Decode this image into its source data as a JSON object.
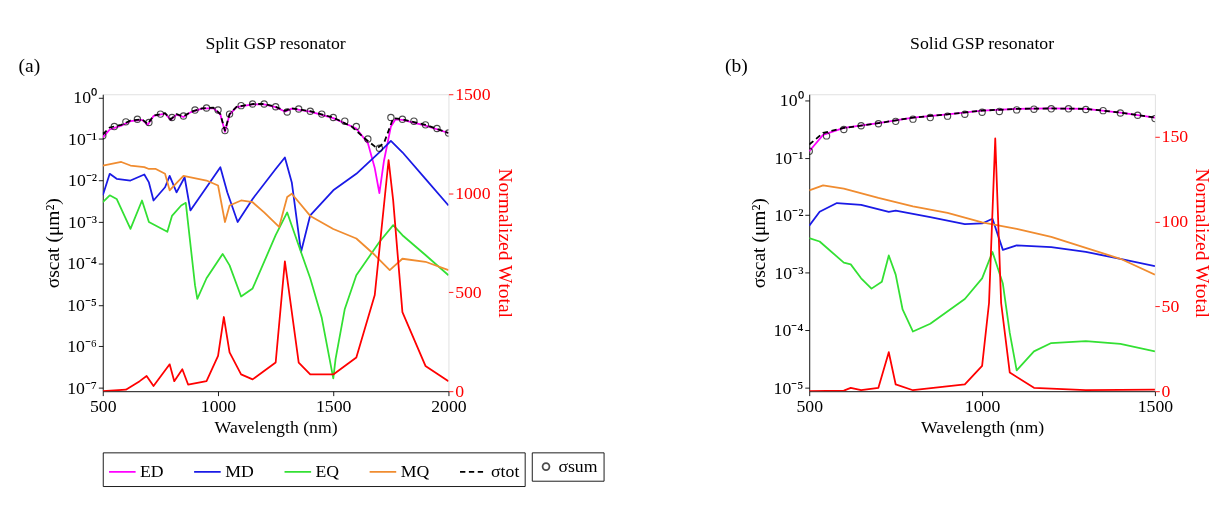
{
  "chart_data": [
    {
      "type": "line",
      "title": "Split GSP resonator",
      "annotations": [
        "(a)"
      ],
      "xlabel": "Wavelength (nm)",
      "ylabel": "σscat (μm²)",
      "y2label": "Normalized Wtotal",
      "log": "y",
      "legend": "bottom",
      "xlim": [
        500,
        2000
      ],
      "xticks": [
        500,
        1000,
        1500,
        2000
      ],
      "ylim": [
        8.3e-08,
        1.2
      ],
      "yticks": [
        {
          "value": 1e-07,
          "label": "10⁻⁷"
        },
        {
          "value": 1e-06,
          "label": "10⁻⁶"
        },
        {
          "value": 1e-05,
          "label": "10⁻⁵"
        },
        {
          "value": 0.0001,
          "label": "10⁻⁴"
        },
        {
          "value": 0.001,
          "label": "10⁻³"
        },
        {
          "value": 0.01,
          "label": "10⁻²"
        },
        {
          "value": 0.1,
          "label": "10⁻¹"
        },
        {
          "value": 1,
          "label": "10⁰"
        }
      ],
      "y2lim": [
        0,
        1500
      ],
      "y2ticks": [
        0,
        500,
        1000,
        1500
      ],
      "series": [
        {
          "name": "ED",
          "color": "#ff00ff",
          "x": [
            500,
            530,
            580,
            620,
            670,
            695,
            720,
            770,
            795,
            820,
            850,
            880,
            930,
            980,
            1010,
            1030,
            1050,
            1080,
            1150,
            1200,
            1250,
            1290,
            1320,
            1400,
            1500,
            1600,
            1650,
            1680,
            1700,
            1720,
            1750,
            1770,
            1800,
            1900,
            2000
          ],
          "values": [
            0.11,
            0.17,
            0.21,
            0.27,
            0.29,
            0.22,
            0.36,
            0.41,
            0.29,
            0.39,
            0.34,
            0.44,
            0.54,
            0.56,
            0.39,
            0.15,
            0.39,
            0.59,
            0.69,
            0.69,
            0.59,
            0.46,
            0.54,
            0.46,
            0.32,
            0.18,
            0.08,
            0.02,
            0.005,
            0.03,
            0.2,
            0.3,
            0.29,
            0.21,
            0.14
          ]
        },
        {
          "name": "MD",
          "color": "#1a1ae6",
          "x": [
            500,
            530,
            560,
            620,
            680,
            700,
            720,
            770,
            790,
            820,
            855,
            880,
            950,
            1010,
            1040,
            1085,
            1150,
            1250,
            1290,
            1320,
            1360,
            1400,
            1500,
            1600,
            1700,
            1750,
            1800,
            1900,
            2000
          ],
          "values": [
            0.0044,
            0.0145,
            0.011,
            0.01,
            0.014,
            0.009,
            0.0033,
            0.0069,
            0.013,
            0.0052,
            0.012,
            0.0019,
            0.0069,
            0.021,
            0.0052,
            0.001,
            0.0036,
            0.019,
            0.036,
            0.009,
            0.00019,
            0.00145,
            0.0058,
            0.0145,
            0.048,
            0.09,
            0.048,
            0.011,
            0.0025
          ]
        },
        {
          "name": "EQ",
          "color": "#33e033",
          "x": [
            500,
            530,
            560,
            620,
            670,
            700,
            780,
            800,
            840,
            860,
            900,
            910,
            950,
            1020,
            1050,
            1100,
            1150,
            1250,
            1300,
            1350,
            1400,
            1450,
            1500,
            1510,
            1550,
            1600,
            1700,
            1760,
            1800,
            1900,
            2000
          ],
          "values": [
            0.003,
            0.0044,
            0.0036,
            0.00068,
            0.0033,
            0.001,
            0.00058,
            0.0014,
            0.0025,
            0.0029,
            3e-05,
            1.4e-05,
            4.4e-05,
            0.00017,
            9e-05,
            1.6e-05,
            2.5e-05,
            0.00048,
            0.0017,
            0.00027,
            4.4e-05,
            4.9e-06,
            1.7e-07,
            5e-07,
            8e-06,
            5.2e-05,
            0.00033,
            0.00084,
            0.00048,
            0.00016,
            5.2e-05
          ]
        },
        {
          "name": "MQ",
          "color": "#f08c30",
          "x": [
            500,
            580,
            620,
            680,
            700,
            730,
            770,
            790,
            810,
            850,
            950,
            1000,
            1030,
            1050,
            1100,
            1150,
            1200,
            1265,
            1300,
            1320,
            1400,
            1500,
            1600,
            1680,
            1745,
            1800,
            1900,
            2000
          ],
          "values": [
            0.023,
            0.028,
            0.023,
            0.021,
            0.019,
            0.019,
            0.0145,
            0.0058,
            0.0076,
            0.013,
            0.01,
            0.0076,
            0.001,
            0.0025,
            0.0033,
            0.003,
            0.0017,
            0.00076,
            0.004,
            0.0048,
            0.0014,
            0.00068,
            0.0004,
            0.00016,
            6.9e-05,
            0.00013,
            0.00011,
            6.9e-05
          ]
        },
        {
          "name": "σtot",
          "color": "#000000",
          "line_style": "dashed",
          "x": [
            500,
            530,
            580,
            620,
            670,
            695,
            720,
            770,
            795,
            820,
            850,
            880,
            930,
            980,
            1010,
            1030,
            1050,
            1080,
            1150,
            1200,
            1250,
            1290,
            1320,
            1400,
            1500,
            1580,
            1640,
            1690,
            1720,
            1760,
            1800,
            1900,
            2000
          ],
          "values": [
            0.13,
            0.19,
            0.22,
            0.28,
            0.3,
            0.23,
            0.37,
            0.42,
            0.3,
            0.4,
            0.35,
            0.45,
            0.55,
            0.57,
            0.4,
            0.16,
            0.4,
            0.6,
            0.7,
            0.7,
            0.6,
            0.48,
            0.55,
            0.47,
            0.33,
            0.2,
            0.1,
            0.06,
            0.08,
            0.32,
            0.3,
            0.22,
            0.14
          ]
        },
        {
          "name": "σsum",
          "color": "#000000",
          "type": "scatter",
          "marker": "circle",
          "x": [
            500,
            550,
            600,
            650,
            700,
            750,
            800,
            850,
            900,
            950,
            1000,
            1030,
            1050,
            1100,
            1150,
            1200,
            1250,
            1300,
            1350,
            1400,
            1450,
            1500,
            1550,
            1600,
            1650,
            1700,
            1750,
            1800,
            1850,
            1900,
            1950,
            2000
          ],
          "values": [
            0.12,
            0.2,
            0.26,
            0.3,
            0.25,
            0.4,
            0.33,
            0.36,
            0.5,
            0.56,
            0.5,
            0.16,
            0.4,
            0.64,
            0.7,
            0.7,
            0.6,
            0.45,
            0.53,
            0.47,
            0.4,
            0.33,
            0.27,
            0.2,
            0.1,
            0.06,
            0.33,
            0.3,
            0.27,
            0.22,
            0.18,
            0.14
          ]
        },
        {
          "color": "#ff0000",
          "axis": "y2",
          "x": [
            500,
            600,
            660,
            690,
            720,
            790,
            810,
            845,
            870,
            950,
            1000,
            1025,
            1050,
            1100,
            1150,
            1250,
            1290,
            1300,
            1350,
            1400,
            1500,
            1600,
            1680,
            1740,
            1760,
            1800,
            1900,
            2000
          ],
          "values": [
            0,
            8,
            51,
            77,
            26,
            136,
            51,
            111,
            34,
            51,
            179,
            375,
            196,
            85,
            60,
            145,
            656,
            571,
            145,
            85,
            85,
            170,
            486,
            1168,
            963,
            400,
            128,
            51
          ]
        }
      ]
    },
    {
      "type": "line",
      "title": "Solid GSP resonator",
      "annotations": [
        "(b)"
      ],
      "xlabel": "Wavelength (nm)",
      "ylabel": "σscat (μm²)",
      "y2label": "Normalized Wtotal",
      "log": "y",
      "xlim": [
        500,
        1500
      ],
      "xticks": [
        500,
        1000,
        1500
      ],
      "ylim": [
        8.7e-06,
        1.27
      ],
      "yticks": [
        {
          "value": 1e-05,
          "label": "10⁻⁵"
        },
        {
          "value": 0.0001,
          "label": "10⁻⁴"
        },
        {
          "value": 0.001,
          "label": "10⁻³"
        },
        {
          "value": 0.01,
          "label": "10⁻²"
        },
        {
          "value": 0.1,
          "label": "10⁻¹"
        },
        {
          "value": 1,
          "label": "10⁰"
        }
      ],
      "y2lim": [
        0,
        175
      ],
      "y2ticks": [
        0,
        50,
        100,
        150
      ],
      "series": [
        {
          "color": "#ff00ff",
          "x": [
            500,
            540,
            600,
            700,
            800,
            900,
            1000,
            1100,
            1200,
            1300,
            1400,
            1500
          ],
          "values": [
            0.13,
            0.25,
            0.33,
            0.4,
            0.5,
            0.57,
            0.66,
            0.71,
            0.72,
            0.71,
            0.61,
            0.5
          ]
        },
        {
          "color": "#1a1ae6",
          "x": [
            500,
            530,
            580,
            650,
            730,
            750,
            850,
            950,
            1000,
            1030,
            1060,
            1100,
            1200,
            1300,
            1400,
            1500
          ],
          "values": [
            0.0066,
            0.0115,
            0.0163,
            0.0152,
            0.0115,
            0.012,
            0.0093,
            0.007,
            0.0072,
            0.0087,
            0.0025,
            0.003,
            0.0028,
            0.0023,
            0.00175,
            0.0013
          ]
        },
        {
          "color": "#33e033",
          "x": [
            500,
            530,
            600,
            620,
            650,
            680,
            710,
            730,
            750,
            770,
            800,
            850,
            950,
            1000,
            1030,
            1060,
            1080,
            1100,
            1150,
            1200,
            1300,
            1400,
            1500
          ],
          "values": [
            0.004,
            0.0035,
            0.0015,
            0.0014,
            0.0008,
            0.00053,
            0.0007,
            0.002,
            0.00093,
            0.00023,
            9.5e-05,
            0.00013,
            0.00035,
            0.0008,
            0.0023,
            0.00065,
            9e-05,
            2e-05,
            4.3e-05,
            6e-05,
            6.5e-05,
            5.8e-05,
            4.3e-05
          ]
        },
        {
          "color": "#f08c30",
          "x": [
            500,
            540,
            600,
            700,
            800,
            900,
            1000,
            1100,
            1200,
            1300,
            1400,
            1500
          ],
          "values": [
            0.027,
            0.033,
            0.029,
            0.02,
            0.0143,
            0.011,
            0.0075,
            0.0058,
            0.0042,
            0.0027,
            0.00175,
            0.00093
          ]
        },
        {
          "color": "#000000",
          "line_style": "dashed",
          "x": [
            500,
            540,
            600,
            700,
            800,
            900,
            1000,
            1100,
            1200,
            1300,
            1400,
            1500
          ],
          "values": [
            0.17,
            0.27,
            0.33,
            0.4,
            0.5,
            0.57,
            0.66,
            0.71,
            0.72,
            0.71,
            0.61,
            0.5
          ]
        },
        {
          "color": "#000000",
          "type": "scatter",
          "marker": "circle",
          "x": [
            500,
            550,
            600,
            650,
            700,
            750,
            800,
            850,
            900,
            950,
            1000,
            1050,
            1100,
            1150,
            1200,
            1250,
            1300,
            1350,
            1400,
            1450,
            1500
          ],
          "values": [
            0.13,
            0.24,
            0.31,
            0.36,
            0.39,
            0.43,
            0.47,
            0.5,
            0.53,
            0.57,
            0.62,
            0.64,
            0.68,
            0.7,
            0.71,
            0.71,
            0.69,
            0.66,
            0.6,
            0.55,
            0.48
          ]
        },
        {
          "color": "#ff0000",
          "axis": "y2",
          "x": [
            500,
            600,
            620,
            650,
            700,
            730,
            750,
            800,
            950,
            1000,
            1020,
            1038,
            1055,
            1080,
            1150,
            1300,
            1500
          ],
          "values": [
            0,
            0.4,
            2,
            0.6,
            2,
            23,
            4,
            0.6,
            4,
            15,
            52,
            149,
            52,
            11,
            2,
            0.6,
            1
          ]
        }
      ]
    }
  ]
}
